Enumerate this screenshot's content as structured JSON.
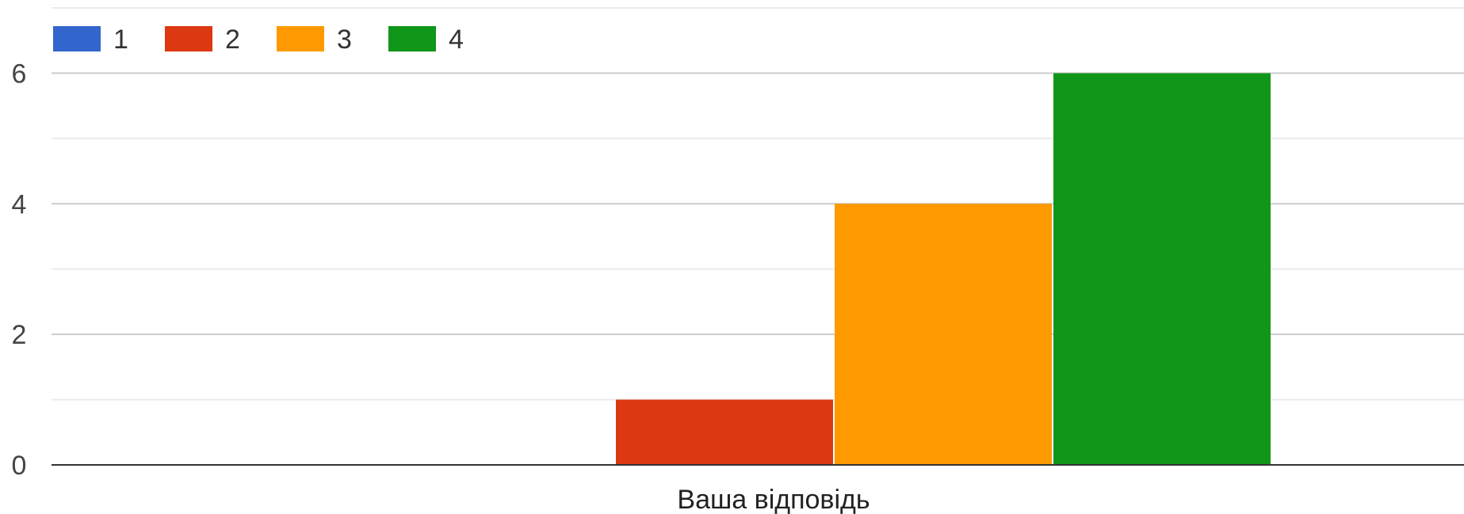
{
  "chart_data": {
    "type": "bar",
    "title": "",
    "xlabel": "",
    "ylabel": "",
    "categories": [
      "Ваша відповідь"
    ],
    "series": [
      {
        "name": "1",
        "color": "#3366CC",
        "values": [
          0
        ]
      },
      {
        "name": "2",
        "color": "#DC3912",
        "values": [
          1
        ]
      },
      {
        "name": "3",
        "color": "#FF9900",
        "values": [
          4
        ]
      },
      {
        "name": "4",
        "color": "#109618",
        "values": [
          6
        ]
      }
    ],
    "ylim": [
      0,
      7
    ],
    "yticks": [
      0,
      2,
      4,
      6
    ],
    "minor_gridlines": [
      1,
      3,
      5,
      7
    ],
    "grid": true,
    "legend_position": "top-left"
  }
}
